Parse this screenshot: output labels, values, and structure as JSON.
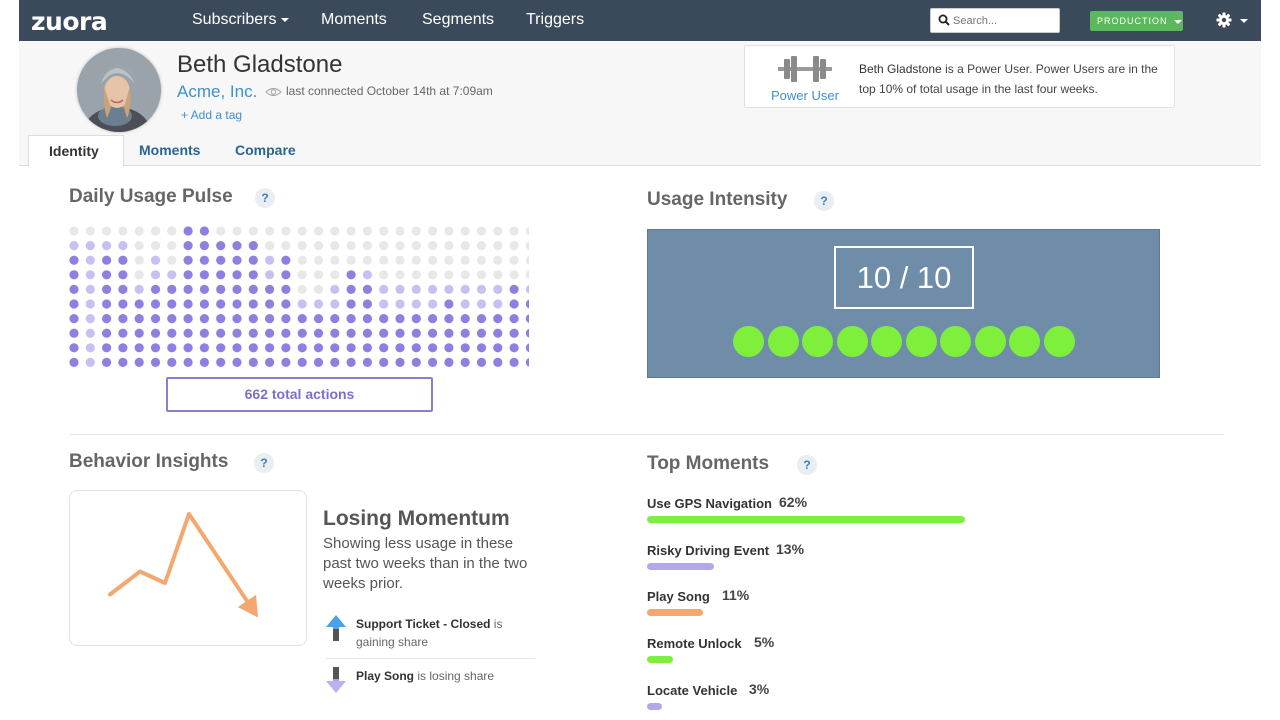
{
  "nav": {
    "logo": "zuora",
    "items": [
      "Subscribers",
      "Moments",
      "Segments",
      "Triggers"
    ],
    "search_placeholder": "Search...",
    "environment": "PRODUCTION"
  },
  "profile": {
    "name": "Beth Gladstone",
    "company": "Acme, Inc.",
    "last_connected": "last connected October 14th at 7:09am",
    "add_tag": "+ Add a tag",
    "badge_label": "Power User",
    "badge_name": "Beth Gladstone",
    "badge_text": " is a Power User. Power Users are in the top 10% of total usage in the last four weeks."
  },
  "tabs": [
    "Identity",
    "Moments",
    "Compare"
  ],
  "pulse": {
    "title": "Daily Usage Pulse",
    "help": "?",
    "total_actions": "662 total actions",
    "columns": [
      {
        "purple": 8,
        "light": 1
      },
      {
        "purple": 0,
        "light": 9
      },
      {
        "purple": 8,
        "light": 1
      },
      {
        "purple": 8,
        "light": 1
      },
      {
        "purple": 5,
        "light": 1
      },
      {
        "purple": 6,
        "light": 2
      },
      {
        "purple": 6,
        "light": 1
      },
      {
        "purple": 10,
        "light": 0
      },
      {
        "purple": 10,
        "light": 0
      },
      {
        "purple": 9,
        "light": 0
      },
      {
        "purple": 9,
        "light": 0
      },
      {
        "purple": 9,
        "light": 0
      },
      {
        "purple": 6,
        "light": 2
      },
      {
        "purple": 8,
        "light": 0
      },
      {
        "purple": 4,
        "light": 1
      },
      {
        "purple": 4,
        "light": 1
      },
      {
        "purple": 4,
        "light": 2
      },
      {
        "purple": 7,
        "light": 0
      },
      {
        "purple": 6,
        "light": 1
      },
      {
        "purple": 4,
        "light": 2
      },
      {
        "purple": 4,
        "light": 2
      },
      {
        "purple": 4,
        "light": 2
      },
      {
        "purple": 4,
        "light": 2
      },
      {
        "purple": 5,
        "light": 1
      },
      {
        "purple": 4,
        "light": 2
      },
      {
        "purple": 4,
        "light": 2
      },
      {
        "purple": 4,
        "light": 2
      },
      {
        "purple": 6,
        "light": 0
      },
      {
        "purple": 5,
        "light": 1
      }
    ]
  },
  "intensity": {
    "title": "Usage Intensity",
    "help": "?",
    "score": "10 / 10",
    "value": 10,
    "max": 10
  },
  "insights": {
    "title": "Behavior Insights",
    "help": "?",
    "trend_title": "Losing Momentum",
    "trend_desc": "Showing less usage in these past two weeks than in the two weeks prior.",
    "trend_points": [
      3,
      5,
      4,
      10,
      1
    ],
    "gaining_name": "Support Ticket - Closed",
    "gaining_suffix": " is gaining share",
    "losing_name": "Play Song",
    "losing_suffix": " is losing share"
  },
  "top_moments": {
    "title": "Top Moments",
    "help": "?",
    "items": [
      {
        "label": "Use GPS Navigation",
        "pct": "62%",
        "value": 62,
        "color": "#7ef03c"
      },
      {
        "label": "Risky Driving Event",
        "pct": "13%",
        "value": 13,
        "color": "#b3a8ec"
      },
      {
        "label": "Play Song",
        "pct": "11%",
        "value": 11,
        "color": "#f4a870"
      },
      {
        "label": "Remote Unlock",
        "pct": "5%",
        "value": 5,
        "color": "#7ef03c"
      },
      {
        "label": "Locate Vehicle",
        "pct": "3%",
        "value": 3,
        "color": "#b3a8ec"
      }
    ]
  },
  "colors": {
    "nav_bg": "#3b4a5a",
    "accent_blue": "#3f8fd2",
    "pulse_purple": "#8f7fe0",
    "pulse_light": "#c9c0f2",
    "pulse_empty": "#e8e8e8",
    "intensity_panel": "#6f8ca8",
    "intensity_dot": "#7ef03c",
    "trend_line": "#f4a870"
  }
}
